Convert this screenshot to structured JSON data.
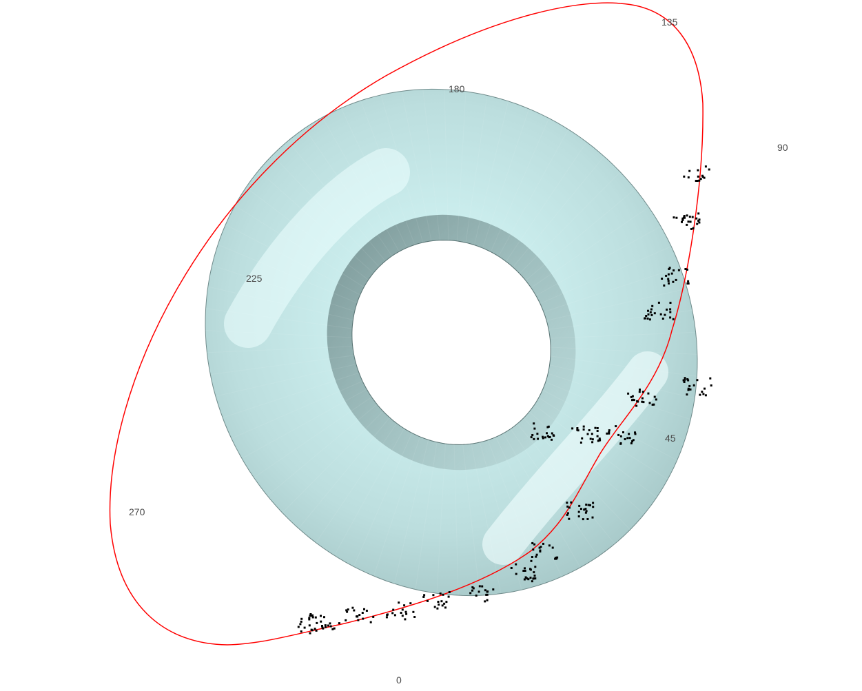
{
  "chart_data": {
    "type": "scatter",
    "surface": "torus",
    "colors": {
      "surface_light": "#d8fbfb",
      "surface_mid": "#a7c9c9",
      "surface_dark": "#3f5656",
      "points": "#000000",
      "curve": "#ff0000"
    },
    "angle_tick_labels": [
      "0",
      "45",
      "90",
      "135",
      "180",
      "225",
      "270"
    ],
    "series": [
      {
        "kind": "points",
        "color": "#000000",
        "marker_size": 3,
        "clusters": [
          {
            "start_deg": 40,
            "end_deg": 66,
            "count": 120
          },
          {
            "start_deg": 30,
            "end_deg": 40,
            "count": 45
          },
          {
            "start_deg": 15,
            "end_deg": 30,
            "count": 60
          },
          {
            "start_deg": 352,
            "end_deg": 12,
            "count": 150
          }
        ]
      },
      {
        "kind": "curve",
        "color": "#ff0000",
        "line_width": 1.5
      }
    ]
  }
}
